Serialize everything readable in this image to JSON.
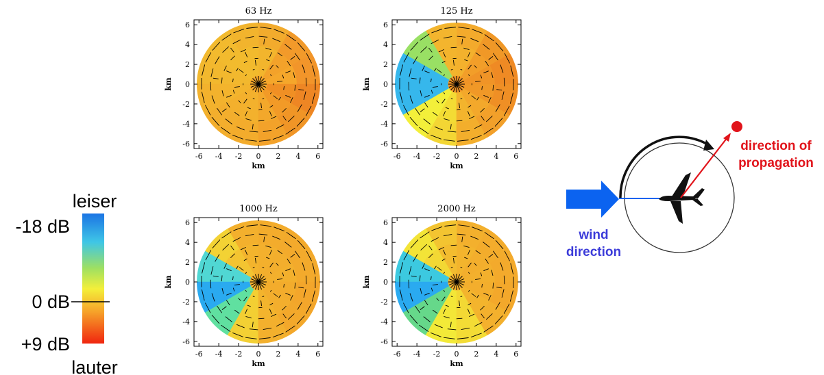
{
  "colors": {
    "scale_top": "#1976e6",
    "scale_upper": "#3fc8e4",
    "scale_mid": "#9ee060",
    "scale_yellow": "#f7f13a",
    "scale_orange": "#f7a629",
    "scale_bottom": "#f02a10",
    "wind_arrow": "#0b63f0",
    "wind_text": "#3b3bd9",
    "propagation": "#e1141b"
  },
  "colorbar": {
    "top_label": "leiser",
    "bottom_label": "lauter",
    "ticks": [
      {
        "label": "-18 dB",
        "value": -18
      },
      {
        "label": "0 dB",
        "value": 0
      },
      {
        "label": "+9 dB",
        "value": 9
      }
    ],
    "range": [
      -18,
      9
    ]
  },
  "legend": {
    "wind_label_line1": "wind",
    "wind_label_line2": "direction",
    "propagation_label_line1": "direction of",
    "propagation_label_line2": "propagation",
    "plane_icon": "airplane-icon",
    "wind_icon": "wind-arrow-icon"
  },
  "chart_data": [
    {
      "type": "heatmap",
      "title": "63 Hz",
      "xlabel": "km",
      "ylabel": "km",
      "xlim": [
        -6.5,
        6.5
      ],
      "ylim": [
        -6.5,
        6.5
      ],
      "xticks": [
        "-6",
        "-4",
        "-2",
        "0",
        "2",
        "4",
        "6"
      ],
      "yticks": [
        "6",
        "4",
        "2",
        "0",
        "-2",
        "-4",
        "-6"
      ],
      "radius_km": 6.2,
      "sectors_deg": [
        0,
        30,
        60,
        90,
        120,
        150,
        180,
        210,
        240,
        270,
        300,
        330,
        360
      ],
      "sector_colors": [
        "#f5a72b",
        "#f3a22a",
        "#f2b52d",
        "#f2ba2d",
        "#f2bb2e",
        "#f2b82e",
        "#f3b42d",
        "#f3b02d",
        "#f3b12d",
        "#f3a82b",
        "#f29a27",
        "#f08f24"
      ],
      "outer_colors": [
        "#f2952a",
        "#f29a2a",
        "#f2ab2d",
        "#f2b42d",
        "#f2ba2e",
        "#f2b82e",
        "#f3b22d",
        "#f3ae2d",
        "#f3ac2c",
        "#f3a22a",
        "#f09526",
        "#ee8624"
      ]
    },
    {
      "type": "heatmap",
      "title": "125 Hz",
      "xlabel": "km",
      "ylabel": "km",
      "xlim": [
        -6.5,
        6.5
      ],
      "ylim": [
        -6.5,
        6.5
      ],
      "xticks": [
        "-6",
        "-4",
        "-2",
        "0",
        "2",
        "4",
        "6"
      ],
      "yticks": [
        "6",
        "4",
        "2",
        "0",
        "-2",
        "-4",
        "-6"
      ],
      "radius_km": 6.2,
      "sectors_deg": [
        0,
        30,
        60,
        90,
        120,
        150,
        180,
        210,
        240,
        270,
        300,
        330,
        360
      ],
      "sector_colors": [
        "#f09427",
        "#f29e29",
        "#f3b12d",
        "#f3b42d",
        "#99e064",
        "#36b7ec",
        "#36b7ec",
        "#f3ef3a",
        "#f3dc34",
        "#f3b42d",
        "#f3a82b",
        "#f09827"
      ],
      "outer_colors": [
        "#ef8a24",
        "#f09827",
        "#f3aa2c",
        "#f3b52e",
        "#99e064",
        "#36b7ec",
        "#36b7ec",
        "#f3ef3a",
        "#f3d634",
        "#f3ae2c",
        "#f2a02a",
        "#ef8f25"
      ]
    },
    {
      "type": "heatmap",
      "title": "1000 Hz",
      "xlabel": "km",
      "ylabel": "km",
      "xlim": [
        -6.5,
        6.5
      ],
      "ylim": [
        -6.5,
        6.5
      ],
      "xticks": [
        "-6",
        "-4",
        "-2",
        "0",
        "2",
        "4",
        "6"
      ],
      "yticks": [
        "6",
        "4",
        "2",
        "0",
        "-2",
        "-4",
        "-6"
      ],
      "radius_km": 6.2,
      "sectors_deg": [
        0,
        30,
        60,
        90,
        120,
        150,
        180,
        210,
        240,
        270,
        300,
        330,
        360
      ],
      "sector_colors": [
        "#f3b02d",
        "#f3ae2d",
        "#f3b02d",
        "#f3b42d",
        "#f3c431",
        "#50d7d3",
        "#2aaaf0",
        "#60e0a0",
        "#f3cf33",
        "#f3b42d",
        "#f3ae2d",
        "#f3ac2c"
      ],
      "outer_colors": [
        "#f3aa2c",
        "#f3aa2c",
        "#f3ac2c",
        "#f3b02d",
        "#f3d234",
        "#50d7d3",
        "#2aaaf0",
        "#60e0a0",
        "#f3d034",
        "#f3b02d",
        "#f3a82b",
        "#f3a62b"
      ]
    },
    {
      "type": "heatmap",
      "title": "2000 Hz",
      "xlabel": "km",
      "ylabel": "km",
      "xlim": [
        -6.5,
        6.5
      ],
      "ylim": [
        -6.5,
        6.5
      ],
      "xticks": [
        "-6",
        "-4",
        "-2",
        "0",
        "2",
        "4",
        "6"
      ],
      "yticks": [
        "6",
        "4",
        "2",
        "0",
        "-2",
        "-4",
        "-6"
      ],
      "radius_km": 6.2,
      "sectors_deg": [
        0,
        30,
        60,
        90,
        120,
        150,
        180,
        210,
        240,
        270,
        300,
        330,
        360
      ],
      "sector_colors": [
        "#f3b02d",
        "#f3ae2d",
        "#f3b42d",
        "#f3bc2f",
        "#f3d834",
        "#3cc9e0",
        "#2aaaf0",
        "#66d88a",
        "#f3e637",
        "#f3d834",
        "#f3b42d",
        "#f3ae2d"
      ],
      "outer_colors": [
        "#f3aa2c",
        "#f3ac2c",
        "#f3b02d",
        "#f3c431",
        "#f3e437",
        "#3cc9e0",
        "#2aaaf0",
        "#66d88a",
        "#f3ea38",
        "#f3dc35",
        "#f3b02d",
        "#f3a82b"
      ]
    }
  ]
}
